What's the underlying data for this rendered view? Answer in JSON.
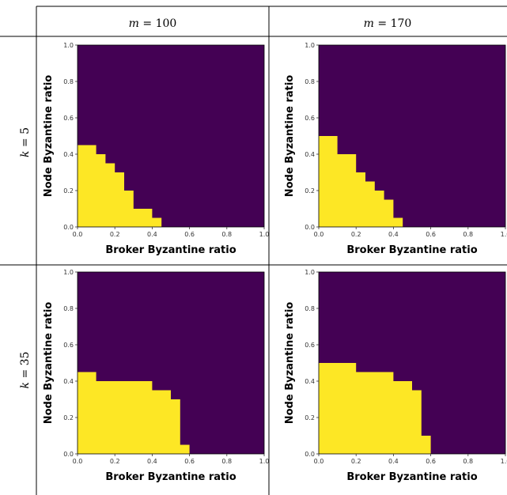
{
  "headers": {
    "columns": [
      {
        "var": "m",
        "eq": " = ",
        "value": "100"
      },
      {
        "var": "m",
        "eq": " = ",
        "value": "170"
      }
    ],
    "rows": [
      {
        "var": "k",
        "eq": " = ",
        "value": "5"
      },
      {
        "var": "k",
        "eq": " = ",
        "value": "35"
      }
    ]
  },
  "colors": {
    "background": "#440154",
    "region": "#fde725"
  },
  "chart_data": [
    {
      "type": "heatmap",
      "row": "k = 5",
      "column": "m = 100",
      "xlabel": "Broker Byzantine ratio",
      "ylabel": "Node Byzantine ratio",
      "xlim": [
        0,
        1
      ],
      "ylim": [
        0,
        1
      ],
      "xticks": [
        "0.0",
        "0.2",
        "0.4",
        "0.6",
        "0.8",
        "1.0"
      ],
      "yticks": [
        "0.0",
        "0.2",
        "0.4",
        "0.6",
        "0.8",
        "1.0"
      ],
      "region_boundary": [
        {
          "x0": 0.0,
          "x1": 0.1,
          "y": 0.45
        },
        {
          "x0": 0.1,
          "x1": 0.15,
          "y": 0.4
        },
        {
          "x0": 0.15,
          "x1": 0.2,
          "y": 0.35
        },
        {
          "x0": 0.2,
          "x1": 0.25,
          "y": 0.3
        },
        {
          "x0": 0.25,
          "x1": 0.3,
          "y": 0.2
        },
        {
          "x0": 0.3,
          "x1": 0.4,
          "y": 0.1
        },
        {
          "x0": 0.4,
          "x1": 0.45,
          "y": 0.05
        }
      ]
    },
    {
      "type": "heatmap",
      "row": "k = 5",
      "column": "m = 170",
      "xlabel": "Broker Byzantine ratio",
      "ylabel": "Node Byzantine ratio",
      "xlim": [
        0,
        1
      ],
      "ylim": [
        0,
        1
      ],
      "xticks": [
        "0.0",
        "0.2",
        "0.4",
        "0.6",
        "0.8",
        "1.0"
      ],
      "yticks": [
        "0.0",
        "0.2",
        "0.4",
        "0.6",
        "0.8",
        "1.0"
      ],
      "region_boundary": [
        {
          "x0": 0.0,
          "x1": 0.1,
          "y": 0.5
        },
        {
          "x0": 0.1,
          "x1": 0.2,
          "y": 0.4
        },
        {
          "x0": 0.2,
          "x1": 0.25,
          "y": 0.3
        },
        {
          "x0": 0.25,
          "x1": 0.3,
          "y": 0.25
        },
        {
          "x0": 0.3,
          "x1": 0.35,
          "y": 0.2
        },
        {
          "x0": 0.35,
          "x1": 0.4,
          "y": 0.15
        },
        {
          "x0": 0.4,
          "x1": 0.45,
          "y": 0.05
        }
      ]
    },
    {
      "type": "heatmap",
      "row": "k = 35",
      "column": "m = 100",
      "xlabel": "Broker Byzantine ratio",
      "ylabel": "Node Byzantine ratio",
      "xlim": [
        0,
        1
      ],
      "ylim": [
        0,
        1
      ],
      "xticks": [
        "0.0",
        "0.2",
        "0.4",
        "0.6",
        "0.8",
        "1.0"
      ],
      "yticks": [
        "0.0",
        "0.2",
        "0.4",
        "0.6",
        "0.8",
        "1.0"
      ],
      "region_boundary": [
        {
          "x0": 0.0,
          "x1": 0.1,
          "y": 0.45
        },
        {
          "x0": 0.1,
          "x1": 0.4,
          "y": 0.4
        },
        {
          "x0": 0.4,
          "x1": 0.5,
          "y": 0.35
        },
        {
          "x0": 0.5,
          "x1": 0.55,
          "y": 0.3
        },
        {
          "x0": 0.55,
          "x1": 0.6,
          "y": 0.05
        }
      ]
    },
    {
      "type": "heatmap",
      "row": "k = 35",
      "column": "m = 170",
      "xlabel": "Broker Byzantine ratio",
      "ylabel": "Node Byzantine ratio",
      "xlim": [
        0,
        1
      ],
      "ylim": [
        0,
        1
      ],
      "xticks": [
        "0.0",
        "0.2",
        "0.4",
        "0.6",
        "0.8",
        "1.0"
      ],
      "yticks": [
        "0.0",
        "0.2",
        "0.4",
        "0.6",
        "0.8",
        "1.0"
      ],
      "region_boundary": [
        {
          "x0": 0.0,
          "x1": 0.2,
          "y": 0.5
        },
        {
          "x0": 0.2,
          "x1": 0.4,
          "y": 0.45
        },
        {
          "x0": 0.4,
          "x1": 0.5,
          "y": 0.4
        },
        {
          "x0": 0.5,
          "x1": 0.55,
          "y": 0.35
        },
        {
          "x0": 0.55,
          "x1": 0.6,
          "y": 0.1
        }
      ]
    }
  ]
}
